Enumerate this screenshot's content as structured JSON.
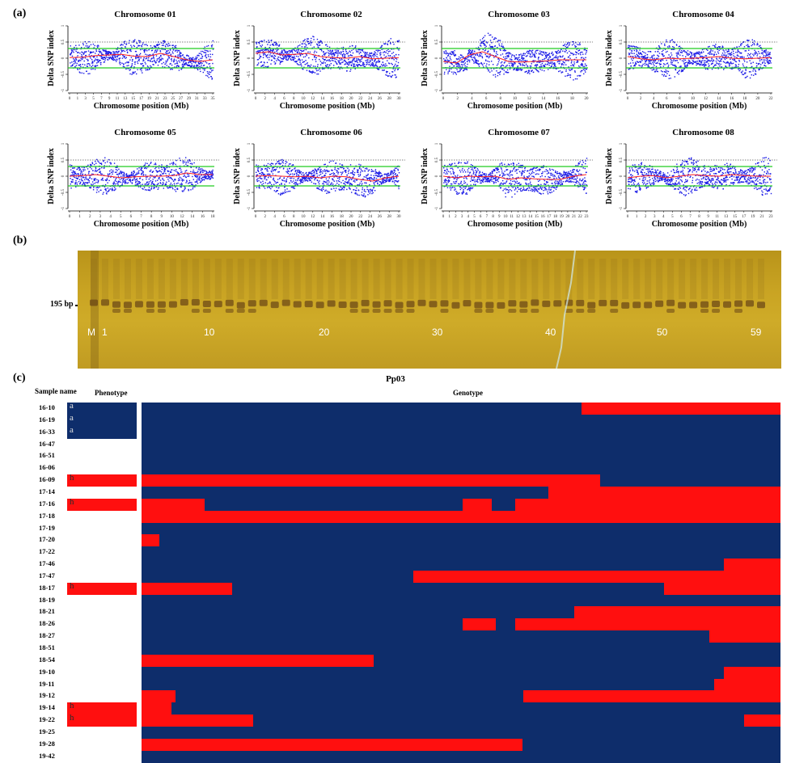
{
  "panels": {
    "a": "(a)",
    "b": "(b)",
    "c": "(c)"
  },
  "panel_a": {
    "ylabel": "Delta SNP index",
    "xlabel": "Chromosome position (Mb)",
    "colors": {
      "points": "#1a1ae6",
      "trend": "#ff2020",
      "threshold": "#22cc22",
      "ref": "#000000"
    },
    "charts": [
      {
        "title": "Chromosome 01",
        "xticks": [
          "0",
          "1",
          "3",
          "5",
          "7",
          "9",
          "11",
          "13",
          "15",
          "17",
          "19",
          "21",
          "23",
          "25",
          "27",
          "29",
          "31",
          "33",
          "35"
        ],
        "trend": [
          0.02,
          0.03,
          0.08,
          0.1,
          0.12,
          0.06,
          0.05,
          0.15,
          0.05,
          -0.05,
          -0.1,
          -0.05
        ]
      },
      {
        "title": "Chromosome 02",
        "xticks": [
          "0",
          "2",
          "4",
          "6",
          "8",
          "10",
          "12",
          "14",
          "16",
          "18",
          "20",
          "22",
          "24",
          "26",
          "28",
          "30"
        ],
        "trend": [
          0.15,
          0.2,
          0.1,
          0.12,
          0.15,
          0.05,
          0.02,
          0.0,
          0.05,
          -0.02,
          0.0,
          0.02
        ]
      },
      {
        "title": "Chromosome 03",
        "xticks": [
          "0",
          "2",
          "4",
          "6",
          "8",
          "10",
          "12",
          "14",
          "16",
          "18",
          "20"
        ],
        "trend": [
          -0.1,
          -0.15,
          0.1,
          0.2,
          0.05,
          -0.1,
          -0.12,
          -0.1,
          -0.08,
          -0.05,
          -0.05,
          -0.05
        ]
      },
      {
        "title": "Chromosome 04",
        "xticks": [
          "0",
          "2",
          "4",
          "6",
          "8",
          "10",
          "12",
          "14",
          "16",
          "18",
          "20",
          "22"
        ],
        "trend": [
          0.05,
          -0.02,
          -0.05,
          0.0,
          -0.02,
          0.0,
          0.02,
          0.05,
          0.0,
          -0.02,
          0.0,
          0.02
        ]
      },
      {
        "title": "Chromosome 05",
        "xticks": [
          "0",
          "1",
          "2",
          "3",
          "4",
          "5",
          "6",
          "7",
          "8",
          "9",
          "10",
          "12",
          "14",
          "16",
          "18"
        ],
        "trend": [
          0.0,
          0.02,
          0.05,
          0.0,
          -0.05,
          -0.02,
          0.0,
          0.0,
          0.02,
          0.1,
          0.05,
          0.05
        ]
      },
      {
        "title": "Chromosome 06",
        "xticks": [
          "0",
          "2",
          "4",
          "6",
          "8",
          "10",
          "12",
          "14",
          "16",
          "18",
          "20",
          "22",
          "24",
          "26",
          "28",
          "30"
        ],
        "trend": [
          0.0,
          0.02,
          0.0,
          -0.02,
          0.0,
          -0.05,
          0.0,
          -0.02,
          -0.1,
          -0.15,
          -0.05,
          0.0
        ]
      },
      {
        "title": "Chromosome 07",
        "xticks": [
          "0",
          "1",
          "2",
          "3",
          "4",
          "5",
          "6",
          "7",
          "8",
          "9",
          "10",
          "11",
          "12",
          "13",
          "14",
          "15",
          "16",
          "17",
          "18",
          "19",
          "20",
          "21",
          "22",
          "23"
        ],
        "trend": [
          0.0,
          -0.05,
          0.0,
          -0.02,
          0.0,
          -0.1,
          -0.05,
          -0.08,
          -0.1,
          -0.1,
          0.0,
          0.05
        ]
      },
      {
        "title": "Chromosome 08",
        "xticks": [
          "0",
          "1",
          "2",
          "3",
          "4",
          "5",
          "6",
          "7",
          "8",
          "9",
          "11",
          "13",
          "15",
          "17",
          "19",
          "21",
          "23"
        ],
        "trend": [
          -0.05,
          0.0,
          0.02,
          -0.05,
          0.0,
          0.05,
          0.02,
          0.0,
          0.05,
          0.02,
          0.0,
          0.0
        ]
      }
    ]
  },
  "panel_b": {
    "bp_label": "195 bp",
    "lane_labels": [
      "M",
      "1",
      "10",
      "20",
      "30",
      "40",
      "50",
      "59"
    ],
    "lane_count": 60
  },
  "panel_c": {
    "title": "Pp03",
    "col_sample": "Sample name",
    "col_pheno": "Phenotype",
    "col_geno": "Genotype",
    "colors": {
      "base": "#0e2d6b",
      "alt": "#ff0f0f",
      "pheno_a": "#0e2d6b",
      "pheno_h": "#ff0f0f"
    },
    "rows": [
      {
        "name": "16-10",
        "pheno": "a",
        "segs": [
          [
            0.689,
            1.0
          ]
        ]
      },
      {
        "name": "16-19",
        "pheno": "a",
        "segs": []
      },
      {
        "name": "16-33",
        "pheno": "a",
        "segs": []
      },
      {
        "name": "16-47",
        "pheno": "",
        "segs": []
      },
      {
        "name": "16-51",
        "pheno": "",
        "segs": []
      },
      {
        "name": "16-06",
        "pheno": "",
        "segs": []
      },
      {
        "name": "16-09",
        "pheno": "h",
        "segs": [
          [
            0.0,
            0.718
          ]
        ]
      },
      {
        "name": "17-14",
        "pheno": "",
        "segs": [
          [
            0.637,
            1.0
          ]
        ]
      },
      {
        "name": "17-16",
        "pheno": "h",
        "segs": [
          [
            0.0,
            0.099
          ],
          [
            0.502,
            0.548
          ],
          [
            0.585,
            1.0
          ]
        ]
      },
      {
        "name": "17-18",
        "pheno": "",
        "segs": [
          [
            0.0,
            1.0
          ]
        ]
      },
      {
        "name": "17-19",
        "pheno": "",
        "segs": []
      },
      {
        "name": "17-20",
        "pheno": "",
        "segs": [
          [
            0.0,
            0.028
          ]
        ]
      },
      {
        "name": "17-22",
        "pheno": "",
        "segs": []
      },
      {
        "name": "17-46",
        "pheno": "",
        "segs": [
          [
            0.911,
            1.0
          ]
        ]
      },
      {
        "name": "17-47",
        "pheno": "",
        "segs": [
          [
            0.425,
            1.0
          ]
        ]
      },
      {
        "name": "18-17",
        "pheno": "h",
        "segs": [
          [
            0.0,
            0.142
          ],
          [
            0.818,
            1.0
          ]
        ]
      },
      {
        "name": "18-19",
        "pheno": "",
        "segs": []
      },
      {
        "name": "18-21",
        "pheno": "",
        "segs": [
          [
            0.677,
            1.0
          ]
        ]
      },
      {
        "name": "18-26",
        "pheno": "",
        "segs": [
          [
            0.502,
            0.554
          ],
          [
            0.585,
            1.0
          ]
        ]
      },
      {
        "name": "18-27",
        "pheno": "",
        "segs": [
          [
            0.889,
            1.0
          ]
        ]
      },
      {
        "name": "18-51",
        "pheno": "",
        "segs": []
      },
      {
        "name": "18-54",
        "pheno": "",
        "segs": [
          [
            0.0,
            0.363
          ]
        ]
      },
      {
        "name": "19-10",
        "pheno": "",
        "segs": [
          [
            0.911,
            1.0
          ]
        ]
      },
      {
        "name": "19-11",
        "pheno": "",
        "segs": [
          [
            0.896,
            1.0
          ]
        ]
      },
      {
        "name": "19-12",
        "pheno": "",
        "segs": [
          [
            0.0,
            0.053
          ],
          [
            0.597,
            1.0
          ]
        ]
      },
      {
        "name": "19-14",
        "pheno": "h",
        "segs": [
          [
            0.0,
            0.047
          ]
        ]
      },
      {
        "name": "19-22",
        "pheno": "h",
        "segs": [
          [
            0.0,
            0.175
          ],
          [
            0.943,
            1.0
          ]
        ]
      },
      {
        "name": "19-25",
        "pheno": "",
        "segs": []
      },
      {
        "name": "19-28",
        "pheno": "",
        "segs": [
          [
            0.0,
            0.596
          ]
        ]
      },
      {
        "name": "19-42",
        "pheno": "",
        "segs": []
      }
    ]
  }
}
